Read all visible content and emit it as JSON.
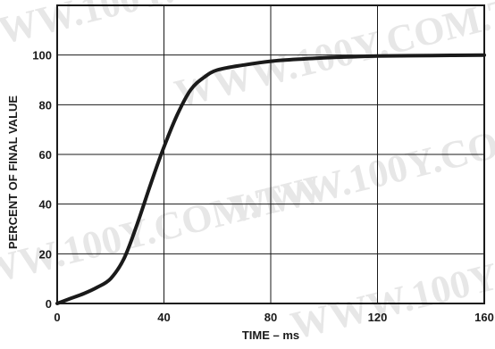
{
  "watermark": {
    "text": "WWW.100Y.COM.TW",
    "color": "#e7e7e7"
  },
  "chart_data": {
    "type": "line",
    "title": "",
    "xlabel": "TIME – ms",
    "ylabel": "PERCENT OF FINAL VALUE",
    "xlim": [
      0,
      160
    ],
    "ylim": [
      0,
      120
    ],
    "x_ticks": [
      0,
      40,
      80,
      120,
      160
    ],
    "x_tick_labels": [
      "0",
      "40",
      "80",
      "120",
      "160"
    ],
    "y_ticks": [
      0,
      20,
      40,
      60,
      80,
      100
    ],
    "y_tick_labels": [
      "0",
      "20",
      "40",
      "60",
      "80",
      "100"
    ],
    "grid": true,
    "line_color": "#1a1a1a",
    "series": [
      {
        "x": [
          0,
          5,
          10,
          15,
          20,
          25,
          30,
          35,
          40,
          45,
          50,
          55,
          60,
          70,
          80,
          90,
          100,
          110,
          120,
          140,
          160
        ],
        "y": [
          0,
          2,
          4,
          6.5,
          10,
          18,
          32,
          48,
          63,
          76,
          86,
          91,
          94,
          96,
          97.5,
          98.3,
          98.9,
          99.3,
          99.6,
          99.8,
          100
        ]
      }
    ]
  }
}
